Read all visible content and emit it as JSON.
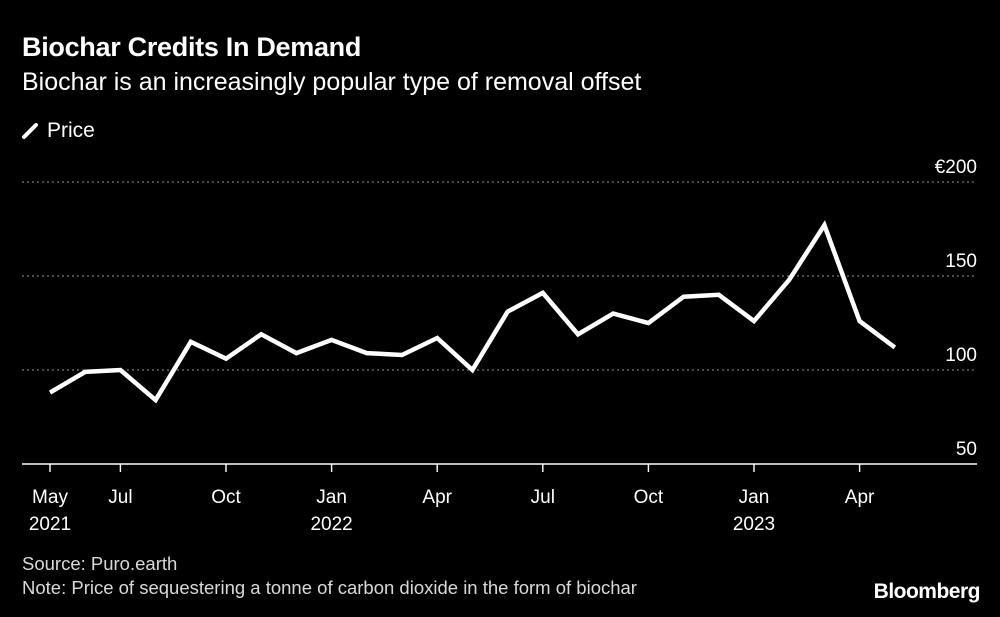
{
  "chart_data": {
    "type": "line",
    "title": "Biochar Credits In Demand",
    "subtitle": "Biochar is an increasingly popular type of removal offset",
    "legend": [
      "Price"
    ],
    "series": [
      {
        "name": "Price",
        "x": [
          "2021-05",
          "2021-06",
          "2021-07",
          "2021-08",
          "2021-09",
          "2021-10",
          "2021-11",
          "2021-12",
          "2022-01",
          "2022-02",
          "2022-03",
          "2022-04",
          "2022-05",
          "2022-06",
          "2022-07",
          "2022-08",
          "2022-09",
          "2022-10",
          "2022-11",
          "2022-12",
          "2023-01",
          "2023-02",
          "2023-03",
          "2023-04",
          "2023-05"
        ],
        "values": [
          88,
          99,
          100,
          84,
          115,
          106,
          119,
          109,
          116,
          109,
          108,
          117,
          100,
          131,
          141,
          119,
          130,
          125,
          139,
          140,
          126,
          148,
          177,
          126,
          112
        ]
      }
    ],
    "yticks": [
      {
        "value": 200,
        "label": "€200"
      },
      {
        "value": 150,
        "label": "150"
      },
      {
        "value": 100,
        "label": "100"
      },
      {
        "value": 50,
        "label": "50"
      }
    ],
    "xticks": [
      {
        "x": "2021-05",
        "label": "May",
        "sublabel": "2021"
      },
      {
        "x": "2021-07",
        "label": "Jul",
        "sublabel": ""
      },
      {
        "x": "2021-10",
        "label": "Oct",
        "sublabel": ""
      },
      {
        "x": "2022-01",
        "label": "Jan",
        "sublabel": "2022"
      },
      {
        "x": "2022-04",
        "label": "Apr",
        "sublabel": ""
      },
      {
        "x": "2022-07",
        "label": "Jul",
        "sublabel": ""
      },
      {
        "x": "2022-10",
        "label": "Oct",
        "sublabel": ""
      },
      {
        "x": "2023-01",
        "label": "Jan",
        "sublabel": "2023"
      },
      {
        "x": "2023-04",
        "label": "Apr",
        "sublabel": ""
      }
    ],
    "ylim": [
      50,
      200
    ],
    "grid": true,
    "ylabel": "",
    "xlabel": ""
  },
  "footer": {
    "source": "Source: Puro.earth",
    "note": "Note: Price of sequestering a tonne of carbon dioxide in the form of biochar"
  },
  "branding": {
    "logo": "Bloomberg"
  },
  "colors": {
    "background": "#000000",
    "line": "#ffffff",
    "grid": "#7a7a7a",
    "axis": "#ffffff"
  }
}
